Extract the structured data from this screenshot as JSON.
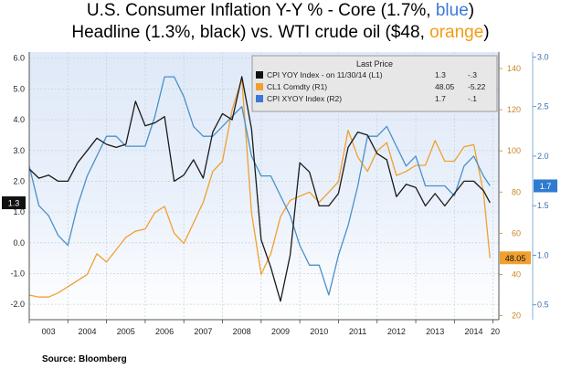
{
  "title": {
    "line1_a": "U.S. Consumer Inflation Y-Y % - Core (1.7%, ",
    "line1_blue": "blue",
    "line1_b": ")",
    "line2_a": "Headline  (1.3%, black) vs. WTI crude oil ($48, ",
    "line2_orange": "orange",
    "line2_b": ")"
  },
  "source": "Source:  Bloomberg",
  "colors": {
    "headline": "#222222",
    "core": "#4a90c8",
    "oil": "#f0a030"
  },
  "chart_data": {
    "type": "line",
    "x": [
      2003.0,
      2003.25,
      2003.5,
      2003.75,
      2004.0,
      2004.25,
      2004.5,
      2004.75,
      2005.0,
      2005.25,
      2005.5,
      2005.75,
      2006.0,
      2006.25,
      2006.5,
      2006.75,
      2007.0,
      2007.25,
      2007.5,
      2007.75,
      2008.0,
      2008.25,
      2008.5,
      2008.75,
      2009.0,
      2009.25,
      2009.5,
      2009.75,
      2010.0,
      2010.25,
      2010.5,
      2010.75,
      2011.0,
      2011.25,
      2011.5,
      2011.75,
      2012.0,
      2012.25,
      2012.5,
      2012.75,
      2013.0,
      2013.25,
      2013.5,
      2013.75,
      2014.0,
      2014.25,
      2014.5,
      2014.75,
      2014.92
    ],
    "x_ticks": [
      "003",
      "2004",
      "2005",
      "2006",
      "2007",
      "2008",
      "2009",
      "2010",
      "2011",
      "2012",
      "2013",
      "2014",
      "20"
    ],
    "series": [
      {
        "name": "CPI YOY Index",
        "axis": "left",
        "values": [
          2.4,
          2.1,
          2.2,
          2.0,
          2.0,
          2.6,
          3.0,
          3.4,
          3.2,
          3.1,
          3.2,
          4.6,
          3.8,
          3.9,
          4.1,
          2.0,
          2.2,
          2.7,
          2.1,
          3.6,
          4.2,
          4.0,
          5.4,
          3.7,
          0.1,
          -0.8,
          -1.9,
          -0.4,
          2.6,
          2.3,
          1.2,
          1.2,
          1.6,
          3.1,
          3.6,
          3.5,
          2.9,
          2.7,
          1.5,
          1.9,
          1.8,
          1.2,
          1.6,
          1.2,
          1.6,
          2.0,
          2.0,
          1.7,
          1.3
        ]
      },
      {
        "name": "CL1 Comdty",
        "axis": "right1",
        "values": [
          30,
          29,
          29,
          31,
          34,
          37,
          40,
          50,
          46,
          52,
          58,
          61,
          62,
          70,
          73,
          60,
          55,
          65,
          75,
          90,
          95,
          120,
          135,
          70,
          40,
          50,
          68,
          76,
          78,
          80,
          75,
          80,
          85,
          110,
          97,
          90,
          100,
          104,
          88,
          90,
          93,
          93,
          105,
          95,
          95,
          102,
          103,
          80,
          48
        ]
      },
      {
        "name": "CPI XYOY Index",
        "axis": "right2",
        "values": [
          1.9,
          1.5,
          1.4,
          1.2,
          1.1,
          1.5,
          1.8,
          2.0,
          2.2,
          2.2,
          2.1,
          2.1,
          2.1,
          2.4,
          2.8,
          2.8,
          2.6,
          2.3,
          2.2,
          2.2,
          2.3,
          2.4,
          2.5,
          2.0,
          1.8,
          1.8,
          1.6,
          1.4,
          1.1,
          0.9,
          0.9,
          0.6,
          1.0,
          1.3,
          1.7,
          2.2,
          2.2,
          2.3,
          2.1,
          1.9,
          2.0,
          1.7,
          1.7,
          1.7,
          1.6,
          1.9,
          2.0,
          1.8,
          1.7
        ]
      }
    ],
    "left_axis": {
      "ylim": [
        -2.5,
        6.2
      ],
      "ticks": [
        "6.0",
        "5.0",
        "4.0",
        "3.0",
        "2.0",
        "1.0",
        "0.0",
        "-1.0",
        "-2.0"
      ]
    },
    "right1_axis": {
      "ylim": [
        18,
        148
      ],
      "ticks": [
        "140",
        "120",
        "100",
        "80",
        "60",
        "40",
        "20"
      ]
    },
    "right2_axis": {
      "ylim": [
        0.35,
        3.05
      ],
      "ticks": [
        "3.0",
        "2.5",
        "2.0",
        "1.5",
        "1.0",
        "0.5"
      ]
    },
    "grid": true,
    "legend": {
      "placement": "top-right",
      "header": "Last Price",
      "rows": [
        {
          "label": "CPI YOY Index  -  on 11/30/14  (L1)",
          "last": "1.3",
          "change": "-.3"
        },
        {
          "label": "CL1 Comdty  (R1)",
          "last": "48.05",
          "change": "-5.22"
        },
        {
          "label": "CPI XYOY Index  (R2)",
          "last": "1.7",
          "change": "-.1"
        }
      ]
    },
    "end_labels": {
      "headline": "1.3",
      "oil": "48.05",
      "core": "1.7"
    }
  }
}
